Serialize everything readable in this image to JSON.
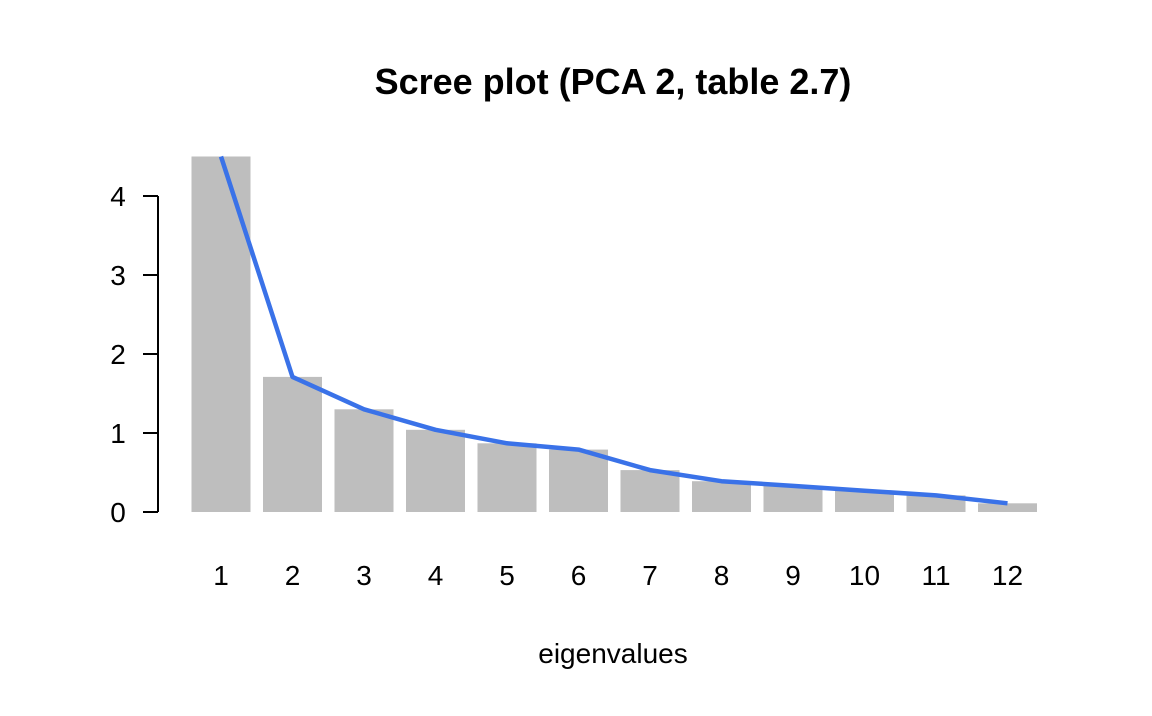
{
  "chart_data": {
    "type": "bar",
    "title": "Scree plot (PCA 2, table 2.7)",
    "xlabel": "eigenvalues",
    "ylabel": "",
    "categories": [
      "1",
      "2",
      "3",
      "4",
      "5",
      "6",
      "7",
      "8",
      "9",
      "10",
      "11",
      "12"
    ],
    "values": [
      4.5,
      1.71,
      1.3,
      1.04,
      0.87,
      0.79,
      0.53,
      0.39,
      0.33,
      0.27,
      0.21,
      0.11
    ],
    "yticks": [
      "0",
      "1",
      "2",
      "3",
      "4"
    ],
    "ylim": [
      0,
      4.5
    ],
    "grid": false,
    "legend": "none",
    "bar_color": "#bebebe",
    "line_color": "#3a72e8",
    "line_overlay": true
  }
}
